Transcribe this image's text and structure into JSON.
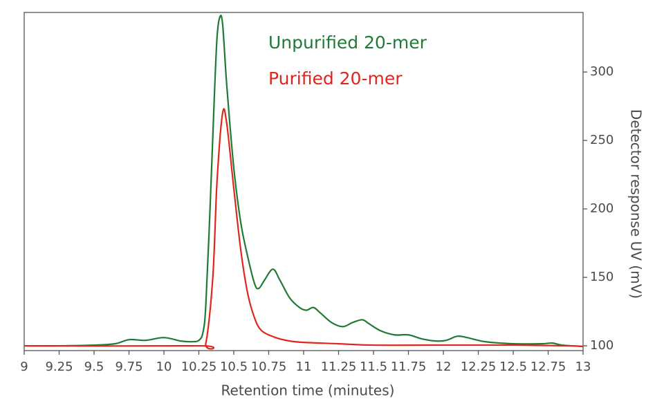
{
  "chart_data": {
    "type": "line",
    "x_label": "Retention time (minutes)",
    "y_label": "Detector response UV (mV)",
    "xlim": [
      9,
      13
    ],
    "xticks": [
      9,
      9.25,
      9.5,
      9.75,
      10,
      10.25,
      10.5,
      10.75,
      11,
      11.25,
      11.5,
      11.75,
      12,
      12.25,
      12.5,
      12.75,
      13
    ],
    "ylim": [
      96.5,
      343.5
    ],
    "yticks": [
      100,
      150,
      200,
      250,
      300
    ],
    "y_axis_side": "right",
    "series": [
      {
        "name": "Unpurified 20-mer",
        "color": "#1e7b35",
        "x": [
          9,
          9.25,
          9.5,
          9.65,
          9.75,
          9.87,
          10,
          10.12,
          10.2,
          10.25,
          10.28,
          10.3,
          10.33,
          10.36,
          10.38,
          10.4,
          10.42,
          10.45,
          10.5,
          10.55,
          10.6,
          10.65,
          10.68,
          10.72,
          10.78,
          10.83,
          10.9,
          10.97,
          11.02,
          11.07,
          11.12,
          11.2,
          11.28,
          11.35,
          11.42,
          11.47,
          11.55,
          11.65,
          11.75,
          11.85,
          11.95,
          12.02,
          12.1,
          12.17,
          12.3,
          12.5,
          12.7,
          12.78,
          12.85,
          13
        ],
        "values": [
          100,
          100,
          100.5,
          101.5,
          104.5,
          104,
          106,
          103.5,
          103,
          104,
          110,
          130,
          200,
          280,
          325,
          340,
          335,
          290,
          230,
          190,
          165,
          145,
          142,
          148,
          156,
          148,
          135,
          128,
          126,
          128,
          124,
          117,
          114,
          117,
          119,
          116,
          111,
          108,
          108,
          105,
          103.5,
          104,
          107,
          106,
          103,
          101.5,
          101.5,
          102,
          100.5,
          99.5
        ]
      },
      {
        "name": "Purified 20-mer",
        "color": "#e0261c",
        "x": [
          9,
          10.25,
          10.3,
          10.35,
          10.38,
          10.42,
          10.45,
          10.5,
          10.55,
          10.6,
          10.65,
          10.7,
          10.8,
          10.9,
          11,
          11.25,
          11.5,
          12,
          12.5,
          12.9,
          13
        ],
        "values": [
          100,
          100,
          102,
          150,
          220,
          270,
          262,
          215,
          170,
          138,
          120,
          111,
          106,
          103.5,
          102.5,
          101.5,
          100.5,
          100.5,
          100.5,
          100,
          99.5
        ]
      }
    ]
  }
}
